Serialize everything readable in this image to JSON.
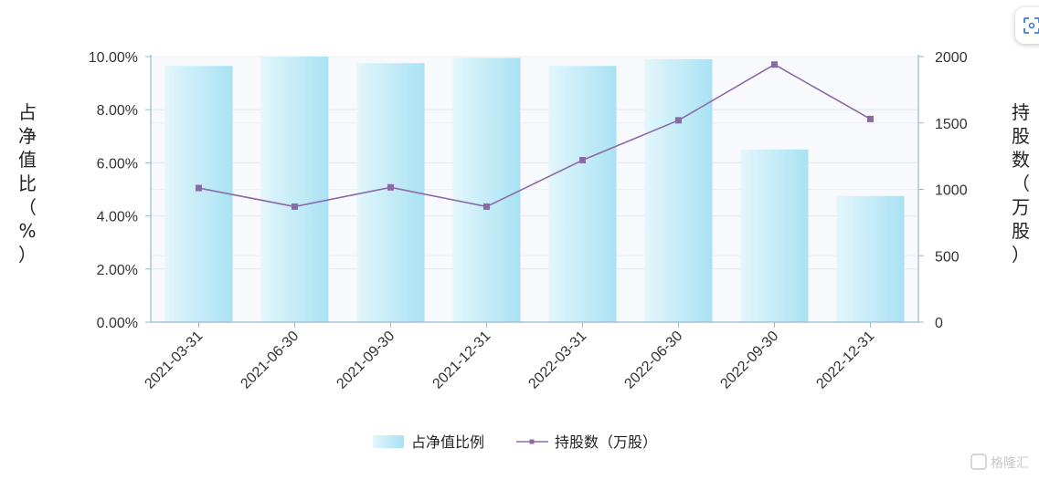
{
  "chart_data": {
    "type": "bar",
    "categories": [
      "2021-03-31",
      "2021-06-30",
      "2021-09-30",
      "2021-12-31",
      "2022-03-31",
      "2022-06-30",
      "2022-09-30",
      "2022-12-31"
    ],
    "series": [
      {
        "name": "占净值比例",
        "type": "bar",
        "axis": "left",
        "values": [
          9.65,
          10.0,
          9.75,
          9.95,
          9.65,
          9.9,
          6.5,
          4.75
        ]
      },
      {
        "name": "持股数（万股）",
        "type": "line",
        "axis": "right",
        "values": [
          1010,
          870,
          1015,
          870,
          1220,
          1520,
          1940,
          1530
        ]
      }
    ],
    "ylabel": "占净值比（%）",
    "ylabel_right": "持股数（万股）",
    "ylim": [
      0,
      10
    ],
    "ylim_right": [
      0,
      2000
    ],
    "yticks": [
      "0.00%",
      "2.00%",
      "4.00%",
      "6.00%",
      "8.00%",
      "10.00%"
    ],
    "yticks_right": [
      "0",
      "500",
      "1000",
      "1500",
      "2000"
    ],
    "grid": true,
    "legend": "bottom-center",
    "colors": {
      "bar_light": "#e3f6fc",
      "bar_dark": "#a9e2f3",
      "line": "#8a6aa6",
      "axis": "#9ab8cc",
      "plot_bg": "#f7f9fc"
    }
  },
  "watermark": "格隆汇",
  "corner_icon": "scan-icon"
}
